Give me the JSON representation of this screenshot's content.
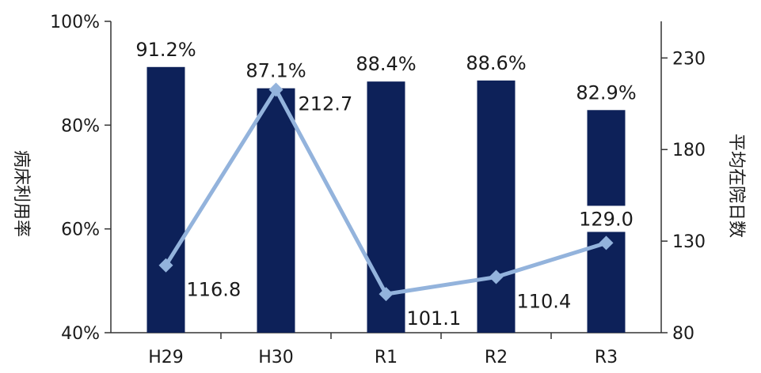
{
  "chart_data": {
    "type": "bar",
    "categories": [
      "H29",
      "H30",
      "R1",
      "R2",
      "R3"
    ],
    "series": [
      {
        "values": [
          91.2,
          87.1,
          88.4,
          88.6,
          82.9
        ],
        "labels": [
          "91.2%",
          "87.1%",
          "88.4%",
          "88.6%",
          "82.9%"
        ],
        "axis": "left",
        "type": "bar",
        "color": "#0d2159"
      },
      {
        "values": [
          116.8,
          212.7,
          101.1,
          110.4,
          129.0
        ],
        "labels": [
          "116.8",
          "212.7",
          "101.1",
          "110.4",
          "129.0"
        ],
        "axis": "right",
        "type": "line",
        "color": "#93b3dc"
      }
    ],
    "y_left": {
      "label": "病床利用率",
      "lim": [
        40,
        100
      ],
      "ticks": [
        "40%",
        "60%",
        "80%",
        "100%"
      ]
    },
    "y_right": {
      "label": "平均在院日数",
      "lim": [
        80,
        250
      ],
      "ticks": [
        "80",
        "130",
        "180",
        "230"
      ]
    },
    "grid": false,
    "legend": "none"
  }
}
